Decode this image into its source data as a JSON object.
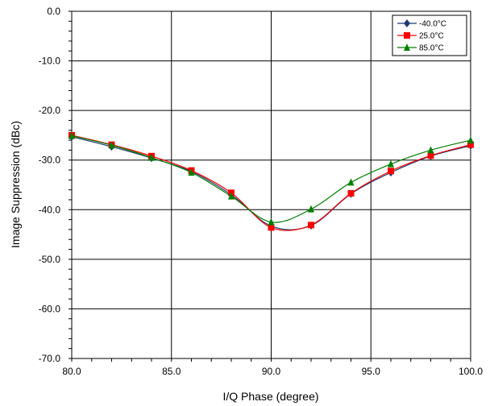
{
  "chart_data": {
    "type": "line",
    "xlabel": "I/Q Phase (degree)",
    "ylabel": "Image Suppression (dBc)",
    "xlim": [
      80.0,
      100.0
    ],
    "ylim": [
      -70.0,
      0.0
    ],
    "x_ticks": [
      "80.0",
      "85.0",
      "90.0",
      "95.0",
      "100.0"
    ],
    "y_ticks": [
      "0.0",
      "-10.0",
      "-20.0",
      "-30.0",
      "-40.0",
      "-50.0",
      "-60.0",
      "-70.0"
    ],
    "grid": true,
    "legend_position": "top-right",
    "series": [
      {
        "name": "-40.0°C",
        "color": "#1f3b73",
        "marker": "diamond",
        "points": [
          [
            80,
            -25.3
          ],
          [
            82,
            -27.3
          ],
          [
            84,
            -29.6
          ],
          [
            86,
            -32.3
          ],
          [
            88,
            -37.0
          ],
          [
            90,
            -43.3
          ],
          [
            92,
            -43.2
          ],
          [
            94,
            -36.8
          ],
          [
            96,
            -32.5
          ],
          [
            98,
            -29.2
          ],
          [
            100,
            -27.1
          ]
        ]
      },
      {
        "name": "25.0°C",
        "color": "#ff0000",
        "marker": "square",
        "points": [
          [
            80,
            -25.0
          ],
          [
            82,
            -26.9
          ],
          [
            84,
            -29.2
          ],
          [
            86,
            -32.1
          ],
          [
            88,
            -36.6
          ],
          [
            90,
            -43.6
          ],
          [
            92,
            -43.1
          ],
          [
            94,
            -36.7
          ],
          [
            96,
            -32.2
          ],
          [
            98,
            -29.1
          ],
          [
            100,
            -26.9
          ]
        ]
      },
      {
        "name": "85.0°C",
        "color": "#008000",
        "marker": "triangle",
        "points": [
          [
            80,
            -25.1
          ],
          [
            82,
            -27.0
          ],
          [
            84,
            -29.5
          ],
          [
            86,
            -32.5
          ],
          [
            88,
            -37.3
          ],
          [
            90,
            -42.5
          ],
          [
            92,
            -39.9
          ],
          [
            94,
            -34.5
          ],
          [
            96,
            -30.8
          ],
          [
            98,
            -28.0
          ],
          [
            100,
            -26.0
          ]
        ]
      }
    ]
  }
}
